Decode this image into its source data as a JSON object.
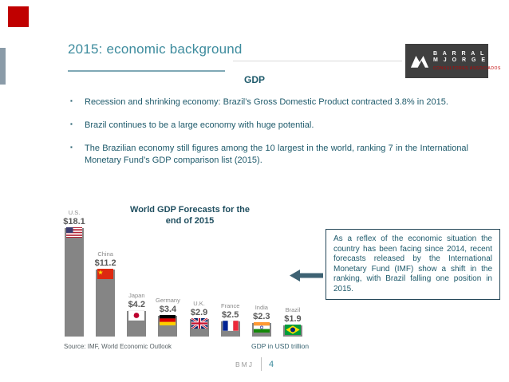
{
  "slide": {
    "title": "2015: economic background",
    "section_heading": "GDP",
    "bullets": [
      "Recession and shrinking economy: Brazil’s Gross Domestic Product contracted 3.8% in 2015.",
      "Brazil continues to be a large economy with huge potential.",
      "The Brazilian economy still figures among the 10 largest in the world, ranking 7 in the International Monetary Fund’s GDP comparison list (2015)."
    ],
    "annotation": "As a reflex of the economic situation the country has been facing since 2014, recent forecasts released by the International Monetary Fund (IMF) show a shift in the ranking, with Brazil falling one position in 2015.",
    "source_note": "Source: IMF, World Economic Outlook",
    "unit_note": "GDP in USD trillion",
    "footer": {
      "brand": "BMJ",
      "page_number": "4"
    }
  },
  "logo": {
    "line1": "B A R R A L",
    "line2": "M J O R G E",
    "tagline": "CONSULTORES ASSOCIADOS"
  },
  "colors": {
    "accent_teal": "#3E8C9E",
    "text_dark": "#1E5A6B",
    "brand_red": "#C00000",
    "bar_gray": "#858585",
    "logo_bg": "#3F3F3F"
  },
  "chart_data": {
    "type": "bar",
    "title": "World GDP Forecasts for the end of 2015",
    "unit": "USD trillion",
    "categories": [
      "U.S.",
      "China",
      "Japan",
      "Germany",
      "U.K.",
      "France",
      "India",
      "Brazil"
    ],
    "values": [
      18.1,
      11.2,
      4.2,
      3.4,
      2.9,
      2.5,
      2.3,
      1.9
    ],
    "value_labels": [
      "$18.1",
      "$11.2",
      "$4.2",
      "$3.4",
      "$2.9",
      "$2.5",
      "$2.3",
      "$1.9"
    ],
    "flags": [
      "us-flag-icon",
      "china-flag-icon",
      "japan-flag-icon",
      "germany-flag-icon",
      "uk-flag-icon",
      "france-flag-icon",
      "india-flag-icon",
      "brazil-flag-icon"
    ],
    "ylim": [
      0,
      19
    ],
    "grid": false,
    "legend": "none"
  }
}
